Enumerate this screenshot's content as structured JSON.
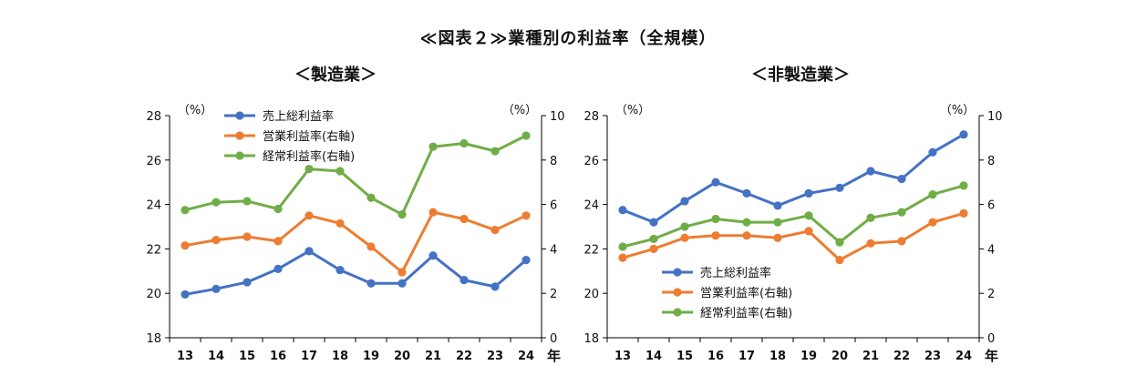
{
  "title": "≪図表２≫業種別の利益率（全規模）",
  "colors": {
    "gross": "#4472C4",
    "operating": "#ED7D31",
    "ordinary": "#70AD47"
  },
  "chart_data": [
    {
      "type": "line",
      "title": "＜製造業＞",
      "x": [
        "13",
        "14",
        "15",
        "16",
        "17",
        "18",
        "19",
        "20",
        "21",
        "22",
        "23",
        "24"
      ],
      "x_unit": "年",
      "left_axis": {
        "unit": "（%）",
        "ylim": [
          18,
          28
        ],
        "ticks": [
          18,
          20,
          22,
          24,
          26,
          28
        ]
      },
      "right_axis": {
        "unit": "（%）",
        "ylim": [
          0,
          10
        ],
        "ticks": [
          0,
          2,
          4,
          6,
          8,
          10
        ]
      },
      "legend_position": "top-left",
      "series": [
        {
          "name": "売上総利益率",
          "axis": "left",
          "color": "#4472C4",
          "values": [
            19.95,
            20.2,
            20.5,
            21.1,
            21.9,
            21.05,
            20.45,
            20.45,
            21.7,
            20.6,
            20.3,
            21.5
          ]
        },
        {
          "name": "営業利益率(右軸)",
          "axis": "right",
          "color": "#ED7D31",
          "values": [
            4.15,
            4.4,
            4.55,
            4.35,
            5.5,
            5.15,
            4.1,
            2.95,
            5.65,
            5.35,
            4.85,
            5.5
          ]
        },
        {
          "name": "経常利益率(右軸)",
          "axis": "right",
          "color": "#70AD47",
          "values": [
            5.75,
            6.1,
            6.15,
            5.8,
            7.6,
            7.5,
            6.3,
            5.55,
            8.6,
            8.75,
            8.4,
            9.1
          ]
        }
      ]
    },
    {
      "type": "line",
      "title": "＜非製造業＞",
      "x": [
        "13",
        "14",
        "15",
        "16",
        "17",
        "18",
        "19",
        "20",
        "21",
        "22",
        "23",
        "24"
      ],
      "x_unit": "年",
      "left_axis": {
        "unit": "（%）",
        "ylim": [
          18,
          28
        ],
        "ticks": [
          18,
          20,
          22,
          24,
          26,
          28
        ]
      },
      "right_axis": {
        "unit": "（%）",
        "ylim": [
          0,
          10
        ],
        "ticks": [
          0,
          2,
          4,
          6,
          8,
          10
        ]
      },
      "legend_position": "bottom-left",
      "series": [
        {
          "name": "売上総利益率",
          "axis": "left",
          "color": "#4472C4",
          "values": [
            23.75,
            23.2,
            24.15,
            25.0,
            24.5,
            23.95,
            24.5,
            24.75,
            25.5,
            25.15,
            26.35,
            27.15
          ]
        },
        {
          "name": "営業利益率(右軸)",
          "axis": "right",
          "color": "#ED7D31",
          "values": [
            3.6,
            4.0,
            4.5,
            4.6,
            4.6,
            4.5,
            4.8,
            3.5,
            4.25,
            4.35,
            5.2,
            5.6
          ]
        },
        {
          "name": "経常利益率(右軸)",
          "axis": "right",
          "color": "#70AD47",
          "values": [
            4.1,
            4.45,
            5.0,
            5.35,
            5.2,
            5.2,
            5.5,
            4.3,
            5.4,
            5.65,
            6.45,
            6.85
          ]
        }
      ]
    }
  ]
}
